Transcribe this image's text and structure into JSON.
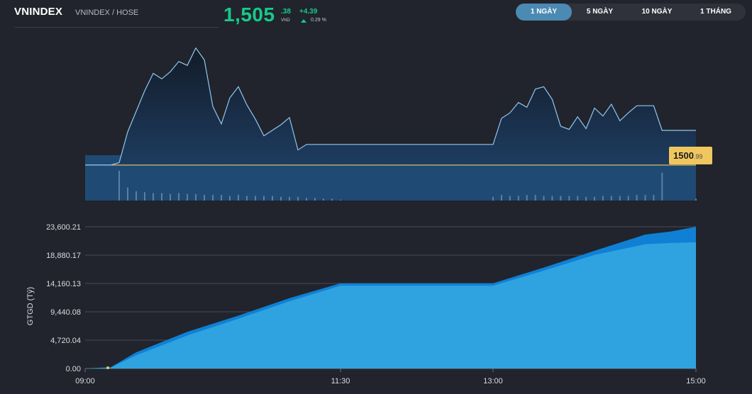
{
  "header": {
    "symbol": "VNINDEX",
    "exchange": "VNINDEX / HOSE",
    "price_int": "1,505",
    "price_dec": ".38",
    "price_unit": "VND",
    "change": "+4.39",
    "change_pct": "0.29 %",
    "accent_color": "#17c98a"
  },
  "range_tabs": [
    {
      "label": "1 NGÀY",
      "active": true
    },
    {
      "label": "5 NGÀY",
      "active": false
    },
    {
      "label": "10 NGÀY",
      "active": false
    },
    {
      "label": "1 THÁNG",
      "active": false
    }
  ],
  "chart_data": [
    {
      "type": "area",
      "series": [
        {
          "x": [
            "09:00",
            "09:05",
            "09:10",
            "09:15",
            "09:20",
            "09:25",
            "09:30",
            "09:35",
            "09:40",
            "09:45",
            "09:50",
            "09:55",
            "10:00",
            "10:05",
            "10:10",
            "10:15",
            "10:20",
            "10:25",
            "10:30",
            "10:35",
            "10:40",
            "10:45",
            "10:50",
            "10:55",
            "11:00",
            "11:05",
            "11:10",
            "11:15",
            "11:20",
            "11:25",
            "11:30",
            "13:00",
            "13:05",
            "13:10",
            "13:15",
            "13:20",
            "13:25",
            "13:30",
            "13:35",
            "13:40",
            "13:45",
            "13:50",
            "13:55",
            "14:00",
            "14:05",
            "14:10",
            "14:15",
            "14:20",
            "14:25",
            "14:30",
            "14:35",
            "14:40",
            "14:45",
            "15:00"
          ],
          "values": [
            1500.99,
            1500.99,
            1500.99,
            1500.99,
            1501.3,
            1505.2,
            1507.8,
            1510.4,
            1512.6,
            1511.9,
            1512.8,
            1514.1,
            1513.6,
            1515.8,
            1514.3,
            1508.4,
            1506.2,
            1509.5,
            1510.9,
            1508.6,
            1506.8,
            1504.7,
            1505.4,
            1506.1,
            1507.0,
            1502.9,
            1503.6,
            1503.6,
            1503.6,
            1503.6,
            1503.6,
            1503.6,
            1506.9,
            1507.6,
            1508.9,
            1508.3,
            1510.6,
            1510.9,
            1509.3,
            1505.9,
            1505.5,
            1507.1,
            1505.6,
            1508.2,
            1507.2,
            1508.7,
            1506.6,
            1507.6,
            1508.5,
            1508.5,
            1508.5,
            1505.38,
            1505.38,
            1505.38
          ]
        }
      ],
      "reference": {
        "value": 1500.99,
        "label_int": "1500",
        "label_dec": ".99"
      },
      "ylim": [
        1496.5,
        1516.5
      ],
      "line_color": "#8fc8f0",
      "ref_color": "#f0c75e",
      "volume": {
        "values": [
          0,
          0,
          0,
          0,
          32,
          14,
          10,
          9,
          8,
          8,
          7,
          8,
          7,
          7,
          6,
          6,
          6,
          5,
          6,
          5,
          5,
          5,
          5,
          4,
          4,
          4,
          3,
          3,
          2,
          2,
          1,
          4,
          6,
          5,
          5,
          6,
          6,
          5,
          5,
          5,
          5,
          5,
          4,
          4,
          5,
          5,
          5,
          5,
          6,
          6,
          6,
          30,
          0,
          2
        ],
        "color": "#5b7fa3"
      }
    },
    {
      "type": "area",
      "ylabel": "GTGD (Tỷ)",
      "yticks": [
        "23,600.21",
        "18,880.17",
        "14,160.13",
        "9,440.08",
        "4,720.04",
        "0.00"
      ],
      "ytick_values": [
        23600.21,
        18880.17,
        14160.13,
        9440.08,
        4720.04,
        0
      ],
      "xticks": [
        "09:00",
        "11:30",
        "13:00",
        "15:00"
      ],
      "ylim": [
        0,
        23600.21
      ],
      "series": [
        {
          "name": "",
          "x": [
            "09:00",
            "09:15",
            "09:30",
            "10:00",
            "10:30",
            "11:00",
            "11:30",
            "13:00",
            "13:30",
            "14:00",
            "14:30",
            "14:45",
            "15:00"
          ],
          "values": [
            0,
            200,
            2700,
            6100,
            8800,
            11700,
            14200,
            14200,
            16800,
            19600,
            22300,
            22800,
            23600
          ],
          "color": "#0f80d4"
        },
        {
          "name": "",
          "x": [
            "09:00",
            "09:15",
            "09:30",
            "10:00",
            "10:30",
            "11:00",
            "11:30",
            "13:00",
            "13:30",
            "14:00",
            "14:30",
            "14:45",
            "15:00"
          ],
          "values": [
            0,
            150,
            2200,
            5500,
            8300,
            11200,
            13800,
            13800,
            16300,
            18900,
            20700,
            20900,
            21000
          ],
          "color": "#2fa3e0"
        }
      ]
    }
  ]
}
